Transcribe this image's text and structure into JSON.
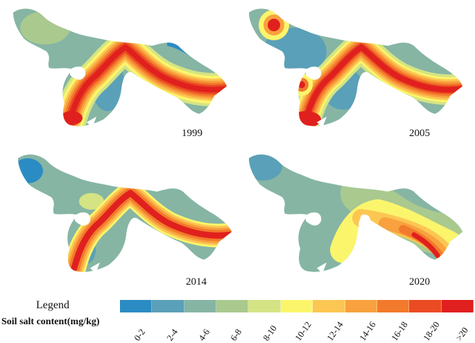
{
  "maps": [
    {
      "year": "1999"
    },
    {
      "year": "2005"
    },
    {
      "year": "2014"
    },
    {
      "year": "2020"
    }
  ],
  "legend": {
    "title": "Legend",
    "subtitle": "Soil salt content(mg/kg)",
    "classes": [
      {
        "label": "0-2",
        "color": "#2b8cc4"
      },
      {
        "label": "2-4",
        "color": "#5aa0b8"
      },
      {
        "label": "4-6",
        "color": "#86b5a4"
      },
      {
        "label": "6-8",
        "color": "#a9c98f"
      },
      {
        "label": "8-10",
        "color": "#d4e484"
      },
      {
        "label": "10-12",
        "color": "#fbf56c"
      },
      {
        "label": "12-14",
        "color": "#fcc653"
      },
      {
        "label": "14-16",
        "color": "#f8a13e"
      },
      {
        "label": "16-18",
        "color": "#f27a2c"
      },
      {
        "label": "18-20",
        "color": "#ea4b22"
      },
      {
        "label": ">20",
        "color": "#e0201e"
      }
    ]
  }
}
